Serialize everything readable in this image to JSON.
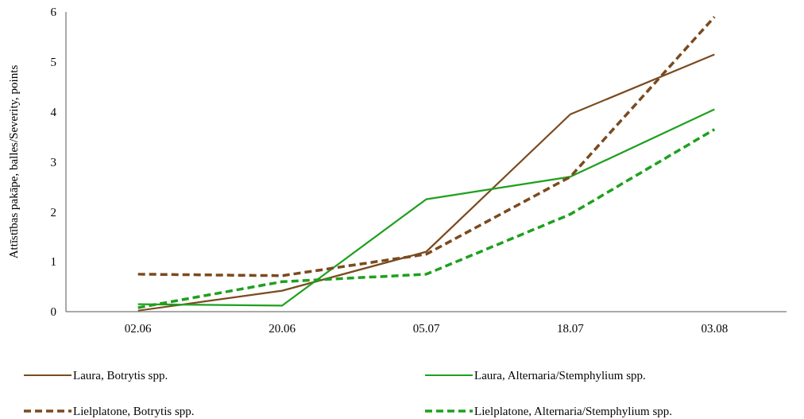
{
  "chart_data": {
    "type": "line",
    "ylabel": "Attīstības pakāpe, balles/Severity, points",
    "categories": [
      "02.06",
      "20.06",
      "05.07",
      "18.07",
      "03.08"
    ],
    "series": [
      {
        "name": "Laura, Botrytis spp.",
        "color": "#7b4a1f",
        "line_style": "solid",
        "values": [
          0.02,
          0.42,
          1.2,
          3.95,
          5.15
        ]
      },
      {
        "name": "Laura, Alternaria/Stemphylium spp.",
        "color": "#1fa01f",
        "line_style": "solid",
        "values": [
          0.15,
          0.12,
          2.25,
          2.7,
          4.05
        ]
      },
      {
        "name": "Lielplatone, Botrytis spp.",
        "color": "#7b4a1f",
        "line_style": "dashed",
        "values": [
          0.75,
          0.72,
          1.15,
          2.7,
          5.9
        ]
      },
      {
        "name": "Lielplatone, Alternaria/Stemphylium spp.",
        "color": "#1fa01f",
        "line_style": "dashed",
        "values": [
          0.08,
          0.6,
          0.75,
          1.95,
          3.65
        ]
      }
    ],
    "ylim": [
      0,
      6
    ],
    "yticks": [
      0,
      1,
      2,
      3,
      4,
      5,
      6
    ],
    "grid": false,
    "legend": "bottom"
  }
}
